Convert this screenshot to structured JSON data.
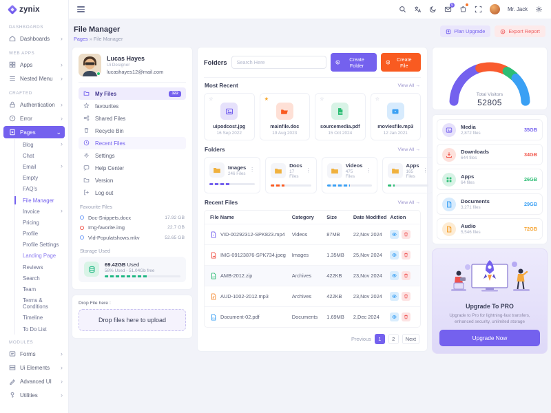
{
  "brand": {
    "name": "zynix"
  },
  "topbar": {
    "user_name": "Mr. Jack",
    "mail_badge": "5"
  },
  "page_header": {
    "title": "File Manager",
    "breadcrumb_root": "Pages",
    "breadcrumb_sep": "»",
    "breadcrumb_current": "File Manager",
    "plan_upgrade_label": "Plan Upgrade",
    "export_report_label": "Export Report"
  },
  "sidebar": {
    "section_dashboards": "Dashboards",
    "section_webapps": "Web Apps",
    "section_crafted": "Crafted",
    "section_modules": "Modules",
    "items": {
      "dashboards": "Dashboards",
      "apps": "Apps",
      "nested_menu": "Nested Menu",
      "authentication": "Authentication",
      "error": "Error",
      "pages": "Pages",
      "forms": "Forms",
      "ui_elements": "Ui Elements",
      "advanced_ui": "Advanced UI",
      "utilities": "Utilities"
    },
    "pages_children": [
      "Blog",
      "Chat",
      "Email",
      "Empty",
      "FAQ's",
      "File Manager",
      "Invoice",
      "Pricing",
      "Profile",
      "Profile Settings",
      "Landing Page",
      "Reviews",
      "Search",
      "Team",
      "Terms & Conditions",
      "Timeline",
      "To Do List"
    ]
  },
  "profile_card": {
    "name": "Lucas Hayes",
    "role": "Ui Designer",
    "email": "lucashayes12@mail.com",
    "menu": [
      {
        "label": "My Files",
        "badge": "322"
      },
      {
        "label": "favourites"
      },
      {
        "label": "Shared Files"
      },
      {
        "label": "Recycle Bin"
      },
      {
        "label": "Recent Files"
      },
      {
        "label": "Settings"
      },
      {
        "label": "Help Center"
      },
      {
        "label": "Version"
      },
      {
        "label": "Log out"
      }
    ],
    "favourite_files_title": "Favourite Files",
    "favourite_files": [
      {
        "name": "Doc-Snippets.docx",
        "size": "17.92 GB",
        "color": "#6f9df7"
      },
      {
        "name": "Img-favorite.img",
        "size": "22.7 GB",
        "color": "#f0564b"
      },
      {
        "name": "Vid-Populatshows.mkv",
        "size": "52.65 GB",
        "color": "#6f9df7"
      }
    ],
    "storage_title": "Storage Used",
    "storage_used": "69.42GB",
    "storage_used_suffix": " Used",
    "storage_detail": "58% Used - 51.04Gb free",
    "storage_percent": 58,
    "storage_color": "#1fb783"
  },
  "dropzone": {
    "label": "Drop File here :",
    "text": "Drop files here to upload"
  },
  "folders_panel": {
    "title": "Folders",
    "search_placeholder": "Search Here",
    "create_folder_label": "Create Folder",
    "create_file_label": "Create File",
    "view_all_label": "View All →",
    "most_recent_title": "Most Recent",
    "recent_cards": [
      {
        "name": "uipodcost.jpg",
        "date": "16 Sep 2022",
        "type": "image",
        "starred": false
      },
      {
        "name": "mainfile.doc",
        "date": "19 Aug 2023",
        "type": "folder",
        "starred": true
      },
      {
        "name": "sourcemedia.pdf",
        "date": "15 Oct 2024",
        "type": "pdf",
        "starred": false
      },
      {
        "name": "moviesfile.mp3",
        "date": "12 Jan 2021",
        "type": "video",
        "starred": false
      }
    ],
    "folders_title": "Folders",
    "folder_cards": [
      {
        "name": "Images",
        "files": "246 Files",
        "percent": 46,
        "color": "#7461ee"
      },
      {
        "name": "Docs",
        "files": "17 Files",
        "percent": 33,
        "color": "#f95b21"
      },
      {
        "name": "Videos",
        "files": "475 Files",
        "percent": 52,
        "color": "#3aa0f4"
      },
      {
        "name": "Apps",
        "files": "165 Files",
        "percent": 18,
        "color": "#2dbd74"
      }
    ],
    "recent_files_title": "Recent Files",
    "table": {
      "columns": [
        "File Name",
        "Category",
        "Size",
        "Date Modified",
        "Action"
      ],
      "rows": [
        {
          "name": "VID-00292312-SPK823.mp4",
          "category": "Videos",
          "size": "87MB",
          "date": "22,Nov 2024",
          "color": "#7461ee"
        },
        {
          "name": "IMG-09123876-SPK734.jpeg",
          "category": "Images",
          "size": "1.35MB",
          "date": "25,Nov 2024",
          "color": "#f0564b"
        },
        {
          "name": "AMB-2012.zip",
          "category": "Archives",
          "size": "422KB",
          "date": "23,Nov 2024",
          "color": "#2dbd74"
        },
        {
          "name": "AUD-1002-2012.mp3",
          "category": "Archives",
          "size": "422KB",
          "date": "23,Nov 2024",
          "color": "#f5903d"
        },
        {
          "name": "Document-02.pdf",
          "category": "Documents",
          "size": "1.69MB",
          "date": "2,Dec 2024",
          "color": "#3aa0f4"
        }
      ]
    },
    "pagination": {
      "previous": "Previous",
      "page1": "1",
      "page2": "2",
      "next": "Next"
    }
  },
  "right_panel": {
    "total_visitors_label": "Total Visitors",
    "total_visitors_value": "52805",
    "categories": [
      {
        "name": "Media",
        "files": "2,872 files",
        "size": "35GB",
        "color": "#7461ee"
      },
      {
        "name": "Downloads",
        "files": "644 files",
        "size": "34GB",
        "color": "#f0564b"
      },
      {
        "name": "Apps",
        "files": "64 files",
        "size": "26GB",
        "color": "#2dbd74"
      },
      {
        "name": "Documents",
        "files": "3,271 files",
        "size": "29GB",
        "color": "#3aa0f4"
      },
      {
        "name": "Audio",
        "files": "5,546 files",
        "size": "72GB",
        "color": "#f5a12d"
      }
    ],
    "upgrade": {
      "title": "Upgrade To PRO",
      "subtitle": "Upgrade to Pro for lightning-fast transfers, enhanced security, unlimited storage",
      "button_label": "Upgrade Now"
    }
  },
  "chart_data": {
    "type": "pie",
    "layout": "semi-donut-gauge",
    "title": "Total Visitors",
    "center_value": 52805,
    "segments": [
      {
        "label": "segment-1",
        "value": 40,
        "color": "#7461ee"
      },
      {
        "label": "segment-2",
        "value": 25,
        "color": "#f95b2e"
      },
      {
        "label": "segment-3",
        "value": 10,
        "color": "#2dbd74"
      },
      {
        "label": "segment-4",
        "value": 25,
        "color": "#3aa0f4"
      }
    ]
  }
}
